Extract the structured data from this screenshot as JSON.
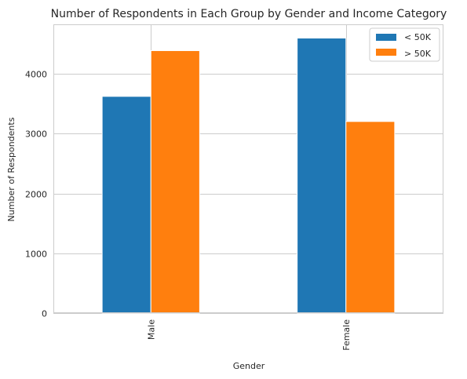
{
  "chart_data": {
    "type": "bar",
    "title": "Number of Respondents in Each Group by Gender and Income Category",
    "xlabel": "Gender",
    "ylabel": "Number of Respondents",
    "categories": [
      "Male",
      "Female"
    ],
    "series": [
      {
        "name": "< 50K",
        "values": [
          3625,
          4600
        ],
        "color": "#1f77b4"
      },
      {
        "name": "> 50K",
        "values": [
          4390,
          3205
        ],
        "color": "#ff7f0e"
      }
    ],
    "yticks": [
      0,
      1000,
      2000,
      3000,
      4000
    ],
    "ylim": [
      0,
      4830
    ],
    "grid": true,
    "legend_position": "top-right",
    "x_tick_rotation": "vertical"
  }
}
